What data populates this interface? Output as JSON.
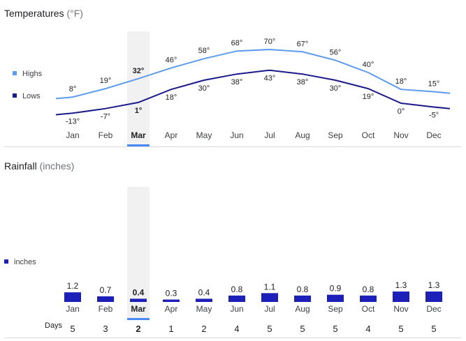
{
  "temperature": {
    "title": "Temperatures",
    "unit": "(°F)",
    "legend": {
      "highs": "Highs",
      "lows": "Lows"
    },
    "colors": {
      "highs": "#5b9bf0",
      "lows": "#1a1a8c"
    },
    "selected_month": "Mar"
  },
  "rainfall": {
    "title": "Rainfall",
    "unit": "(inches)",
    "legend": "inches",
    "color": "#1c1fb8",
    "days_label": "Days"
  },
  "chart_data": [
    {
      "type": "line",
      "title": "Temperatures (°F)",
      "categories": [
        "Jan",
        "Feb",
        "Mar",
        "Apr",
        "May",
        "Jun",
        "Jul",
        "Aug",
        "Sep",
        "Oct",
        "Nov",
        "Dec"
      ],
      "series": [
        {
          "name": "Highs",
          "values": [
            8,
            19,
            32,
            46,
            58,
            68,
            70,
            67,
            56,
            40,
            18,
            15
          ],
          "labels": [
            "8°",
            "19°",
            "32°",
            "46°",
            "58°",
            "68°",
            "70°",
            "67°",
            "56°",
            "40°",
            "18°",
            "15°"
          ]
        },
        {
          "name": "Lows",
          "values": [
            -13,
            -7,
            1,
            18,
            30,
            38,
            43,
            38,
            30,
            19,
            0,
            -5
          ],
          "labels": [
            "-13°",
            "-7°",
            "1°",
            "18°",
            "30°",
            "38°",
            "43°",
            "38°",
            "30°",
            "19°",
            "0°",
            "-5°"
          ]
        }
      ]
    },
    {
      "type": "bar",
      "title": "Rainfall (inches)",
      "categories": [
        "Jan",
        "Feb",
        "Mar",
        "Apr",
        "May",
        "Jun",
        "Jul",
        "Aug",
        "Sep",
        "Oct",
        "Nov",
        "Dec"
      ],
      "values": [
        1.2,
        0.7,
        0.4,
        0.3,
        0.4,
        0.8,
        1.1,
        0.8,
        0.9,
        0.8,
        1.3,
        1.3
      ],
      "labels": [
        "1.2",
        "0.7",
        "0.4",
        "0.3",
        "0.4",
        "0.8",
        "1.1",
        "0.8",
        "0.9",
        "0.8",
        "1.3",
        "1.3"
      ],
      "days": [
        "5",
        "3",
        "2",
        "1",
        "2",
        "4",
        "5",
        "5",
        "5",
        "4",
        "5",
        "5"
      ]
    }
  ]
}
